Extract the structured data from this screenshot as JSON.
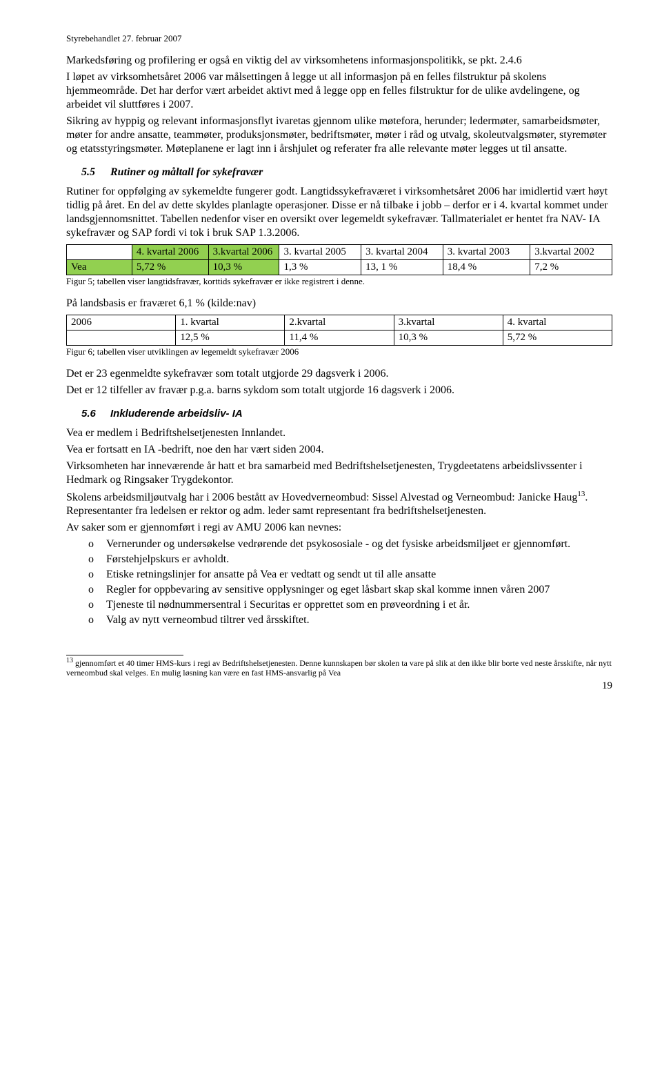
{
  "header_note": "Styrebehandlet 27. februar 2007",
  "para1": "Markedsføring og profilering er også en viktig del av virksomhetens informasjonspolitikk, se pkt. 2.4.6",
  "para2": "I løpet av virksomhetsåret 2006 var målsettingen å legge ut all informasjon på en felles filstruktur på skolens hjemmeområde. Det har derfor vært arbeidet aktivt med å legge opp en felles filstruktur for de ulike avdelingene, og arbeidet vil sluttføres i 2007.",
  "para3": "Sikring av hyppig og relevant informasjonsflyt ivaretas gjennom ulike møtefora, herunder; ledermøter, samarbeidsmøter, møter for andre ansatte, teammøter, produksjonsmøter, bedriftsmøter, møter i råd og utvalg, skoleutvalgsmøter, styremøter og etatsstyringsmøter. Møteplanene er lagt inn i årshjulet og referater fra alle relevante møter legges ut til ansatte.",
  "section55_num": "5.5",
  "section55_title": "Rutiner og måltall for sykefravær",
  "para55": "Rutiner for oppfølging av sykemeldte fungerer godt. Langtidssykefraværet i virksomhetsåret 2006 har imidlertid vært høyt tidlig på året. En del av dette skyldes planlagte operasjoner. Disse er nå tilbake i jobb – derfor er i 4. kvartal kommet under landsgjennomsnittet. Tabellen nedenfor viser en oversikt over legemeldt sykefravær. Tallmaterialet er hentet fra NAV- IA sykefravær og SAP fordi vi tok i bruk SAP 1.3.2006.",
  "table1": {
    "headers": [
      "",
      "4. kvartal 2006",
      "3.kvartal 2006",
      "3. kvartal 2005",
      "3. kvartal 2004",
      "3. kvartal 2003",
      "3.kvartal 2002"
    ],
    "row_label": "Vea",
    "row": [
      "5,72 %",
      "10,3 %",
      "1,3 %",
      "13, 1 %",
      "18,4 %",
      "7,2 %"
    ],
    "green_header_cols": [
      1,
      2
    ],
    "green_row_cols": [
      0,
      1,
      2
    ],
    "col_widths": [
      "12%",
      "14%",
      "13%",
      "15%",
      "15%",
      "16%",
      "15%"
    ]
  },
  "fig5": "Figur 5; tabellen viser langtidsfravær, korttids sykefravær er ikke registrert i denne.",
  "para_lands": "På landsbasis er fraværet 6,1 % (kilde:nav)",
  "table2": {
    "headers": [
      "2006",
      "1. kvartal",
      "2.kvartal",
      "3.kvartal",
      "4. kvartal"
    ],
    "row": [
      "",
      "12,5 %",
      "11,4 %",
      "10,3 %",
      "5,72 %"
    ],
    "col_widths": [
      "20%",
      "20%",
      "20%",
      "20%",
      "20%"
    ]
  },
  "fig6": "Figur 6; tabellen viser utviklingen av legemeldt sykefravær 2006",
  "para_eg1": "Det er 23 egenmeldte sykefravær som totalt utgjorde 29 dagsverk i 2006.",
  "para_eg2": "Det er 12 tilfeller av fravær p.g.a. barns sykdom som totalt utgjorde 16 dagsverk i 2006.",
  "section56_num": "5.6",
  "section56_title": "Inkluderende arbeidsliv- IA",
  "para56a": "Vea er medlem i Bedriftshelsetjenesten Innlandet.",
  "para56b": "Vea er fortsatt en IA -bedrift, noe den har vært siden 2004.",
  "para56c": "Virksomheten har inneværende år hatt et bra samarbeid med Bedriftshelsetjenesten, Trygdeetatens arbeidslivssenter i Hedmark og Ringsaker Trygdekontor.",
  "para56d_pre": "Skolens arbeidsmiljøutvalg har i 2006 bestått av Hovedverneombud: Sissel Alvestad og Verneombud: Janicke Haug",
  "para56d_fn": "13",
  "para56d_post": ". Representanter fra ledelsen er rektor og adm. leder samt representant fra bedriftshelsetjenesten.",
  "para56e": "Av saker som er gjennomført i regi av AMU 2006 kan nevnes:",
  "bullets": [
    "Vernerunder og undersøkelse vedrørende det psykososiale - og det fysiske arbeidsmiljøet er gjennomført.",
    "Førstehjelpskurs er avholdt.",
    "Etiske retningslinjer for ansatte på Vea er vedtatt og sendt ut til alle ansatte",
    "Regler for oppbevaring av sensitive opplysninger og eget låsbart skap skal komme innen våren 2007",
    "Tjeneste til nødnummersentral i Securitas er opprettet som en prøveordning i et år.",
    "Valg av nytt verneombud tiltrer ved årsskiftet."
  ],
  "footnote_num": "13",
  "footnote_text": " gjennomført et 40 timer HMS-kurs i regi av Bedriftshelsetjenesten. Denne kunnskapen bør skolen ta vare på slik at den ikke blir borte ved neste årsskifte, når nytt verneombud skal velges. En mulig løsning kan være en fast HMS-ansvarlig på Vea",
  "page_number": "19"
}
